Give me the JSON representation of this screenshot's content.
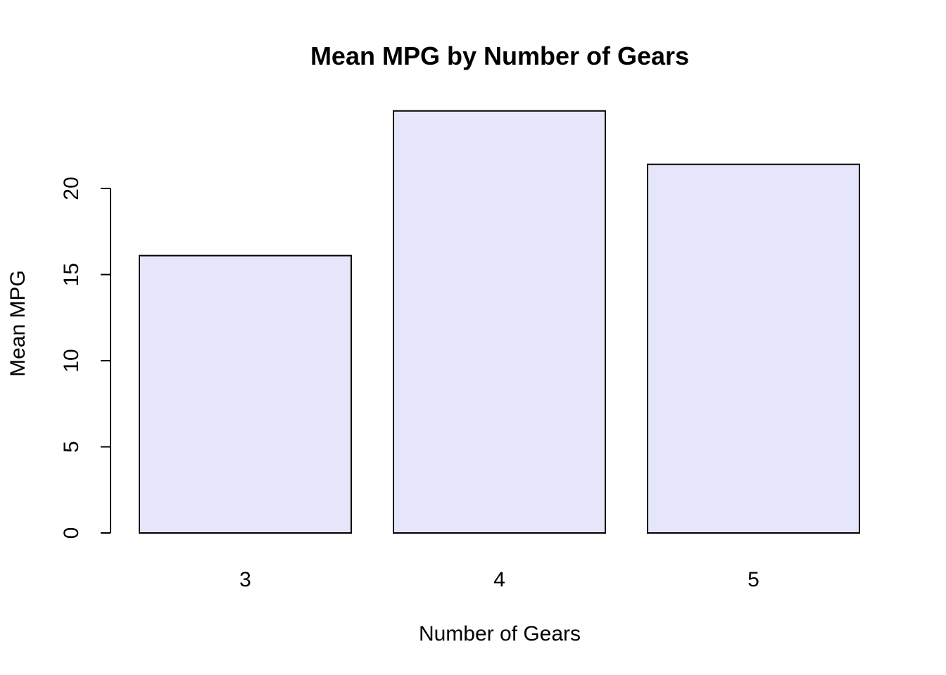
{
  "chart_data": {
    "type": "bar",
    "title": "Mean MPG by Number of Gears",
    "xlabel": "Number of Gears",
    "ylabel": "Mean MPG",
    "categories": [
      "3",
      "4",
      "5"
    ],
    "values": [
      16.1,
      24.5,
      21.4
    ],
    "yticks": [
      0,
      5,
      10,
      15,
      20
    ],
    "ylim": [
      0,
      24.5
    ],
    "grid": false,
    "bar_color": "#E6E6FA",
    "bar_border_color": "#000000"
  }
}
